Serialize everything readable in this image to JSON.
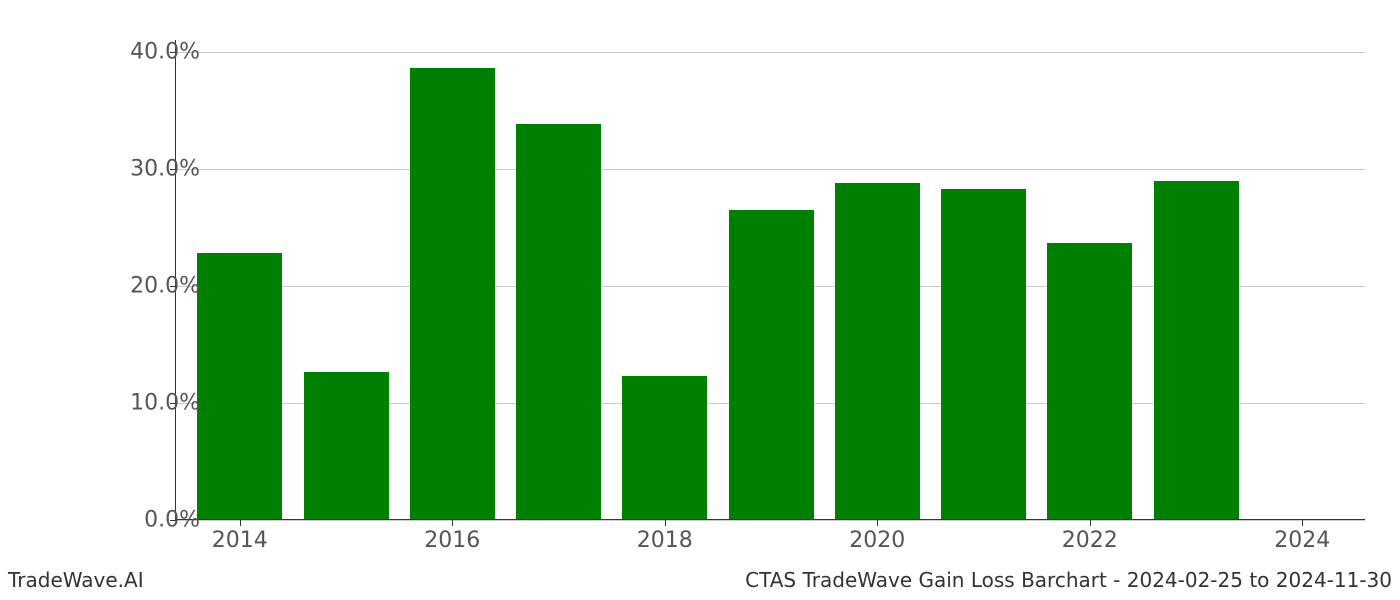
{
  "chart": {
    "type": "bar",
    "years": [
      2014,
      2015,
      2016,
      2017,
      2018,
      2019,
      2020,
      2021,
      2022,
      2023
    ],
    "values": [
      22.7,
      12.6,
      38.5,
      33.7,
      12.2,
      26.4,
      28.7,
      28.2,
      23.6,
      28.9
    ],
    "bar_color": "#008000",
    "background_color": "#ffffff",
    "grid_color": "#cccccc",
    "axis_color": "#333333",
    "tick_label_color": "#555555",
    "y_ticks": [
      0,
      10,
      20,
      30,
      40
    ],
    "y_tick_labels": [
      "0.0%",
      "10.0%",
      "20.0%",
      "30.0%",
      "40.0%"
    ],
    "x_ticks": [
      2014,
      2016,
      2018,
      2020,
      2022,
      2024
    ],
    "x_tick_labels": [
      "2014",
      "2016",
      "2018",
      "2020",
      "2022",
      "2024"
    ],
    "x_domain": [
      2013.4,
      2024.6
    ],
    "y_domain": [
      0,
      41
    ],
    "bar_width_years": 0.8,
    "tick_fontsize": 22,
    "footer_fontsize": 20
  },
  "footer": {
    "left": "TradeWave.AI",
    "right": "CTAS TradeWave Gain Loss Barchart - 2024-02-25 to 2024-11-30"
  }
}
